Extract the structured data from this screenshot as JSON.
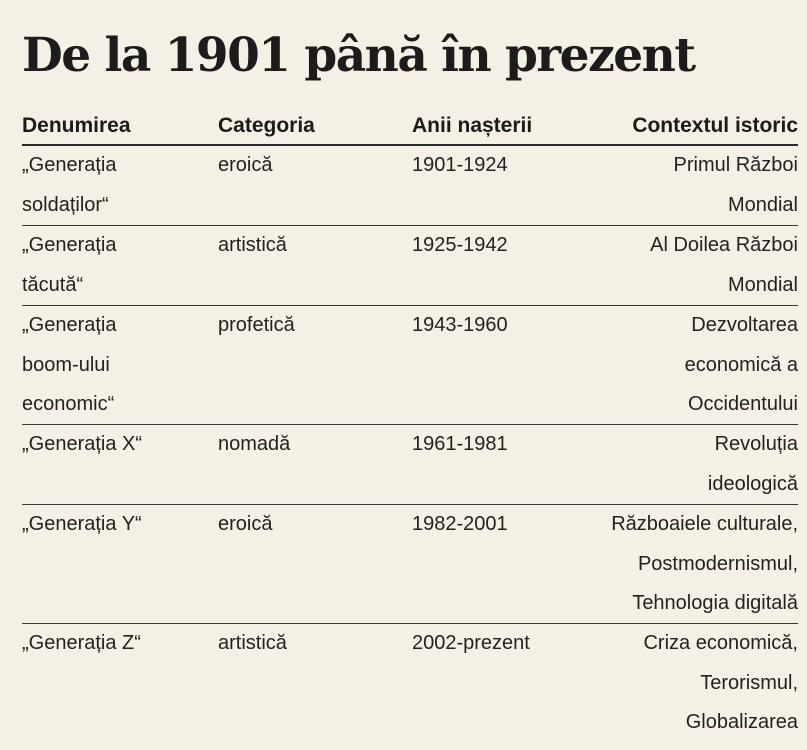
{
  "title": "De la 1901 până în prezent",
  "headers": [
    "Denumirea",
    "Categoria",
    "Anii nașterii",
    "Contextul istoric"
  ],
  "rows": [
    {
      "name": [
        "„Generația",
        "soldaților“"
      ],
      "category": "eroică",
      "years": "1901-1924",
      "context": [
        "Primul Război",
        "Mondial"
      ]
    },
    {
      "name": [
        "„Generația",
        "tăcută“"
      ],
      "category": "artistică",
      "years": "1925-1942",
      "context": [
        "Al Doilea Război",
        "Mondial"
      ]
    },
    {
      "name": [
        "„Generația",
        "boom-ului",
        "economic“"
      ],
      "category": "profetică",
      "years": "1943-1960",
      "context": [
        "Dezvoltarea",
        "economică a",
        "Occidentului"
      ]
    },
    {
      "name": [
        "„Generația X“"
      ],
      "category": "nomadă",
      "years": "1961-1981",
      "context": [
        "Revoluția",
        "ideologică"
      ]
    },
    {
      "name": [
        "„Generația Y“"
      ],
      "category": "eroică",
      "years": "1982-2001",
      "context": [
        "Războaiele culturale,",
        "Postmodernismul,",
        "Tehnologia digitală"
      ]
    },
    {
      "name": [
        "„Generația Z“"
      ],
      "category": "artistică",
      "years": "2002-prezent",
      "context": [
        "Criza economică,",
        "Terorismul,",
        "Globalizarea"
      ]
    }
  ]
}
